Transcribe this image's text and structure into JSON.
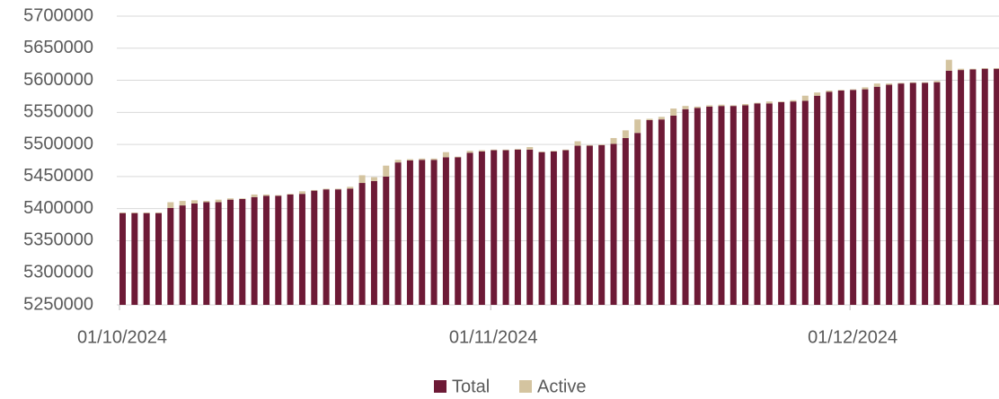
{
  "chart_data": {
    "type": "stacked-bar",
    "categories": [
      "01/10/2024",
      null,
      null,
      null,
      null,
      null,
      null,
      null,
      null,
      null,
      null,
      null,
      null,
      null,
      null,
      null,
      null,
      null,
      null,
      null,
      null,
      null,
      null,
      null,
      null,
      null,
      null,
      null,
      null,
      null,
      null,
      "01/11/2024",
      null,
      null,
      null,
      null,
      null,
      null,
      null,
      null,
      null,
      null,
      null,
      null,
      null,
      null,
      null,
      null,
      null,
      null,
      null,
      null,
      null,
      null,
      null,
      null,
      null,
      null,
      null,
      null,
      null,
      "01/12/2024",
      null,
      null,
      null,
      null,
      null,
      null,
      null,
      null,
      null,
      null,
      null,
      null
    ],
    "series": [
      {
        "name": "Total",
        "color": "#6d1a36",
        "values": [
          5393000,
          5393000,
          5393000,
          5393000,
          5401000,
          5405000,
          5408000,
          5410000,
          5410000,
          5414000,
          5415000,
          5418000,
          5420000,
          5420000,
          5422000,
          5423000,
          5428000,
          5430000,
          5430000,
          5431000,
          5440000,
          5443000,
          5450000,
          5472000,
          5475000,
          5476000,
          5476000,
          5480000,
          5480000,
          5487000,
          5489000,
          5491000,
          5491000,
          5492000,
          5492000,
          5488000,
          5489000,
          5491000,
          5498000,
          5498000,
          5499000,
          5501000,
          5510000,
          5518000,
          5538000,
          5539000,
          5545000,
          5555000,
          5557000,
          5559000,
          5560000,
          5560000,
          5561000,
          5564000,
          5564000,
          5566000,
          5567000,
          5568000,
          5576000,
          5582000,
          5584000,
          5585000,
          5586000,
          5590000,
          5593000,
          5595000,
          5596000,
          5596000,
          5597000,
          5615000,
          5616000,
          5617000,
          5618000,
          5618000
        ]
      },
      {
        "name": "Active",
        "color": "#d4c4a0",
        "values": [
          1000,
          1000,
          1000,
          1000,
          9000,
          7000,
          5000,
          2000,
          4000,
          2000,
          1000,
          4000,
          2000,
          1000,
          1000,
          4000,
          1000,
          1000,
          1000,
          3000,
          12000,
          6000,
          17000,
          4000,
          2000,
          2000,
          2000,
          8000,
          1000,
          3000,
          2000,
          1000,
          1000,
          1000,
          4000,
          1000,
          1000,
          1000,
          7000,
          1000,
          1000,
          9000,
          12000,
          21000,
          2000,
          4000,
          11000,
          5000,
          2000,
          2000,
          2000,
          1000,
          2000,
          1000,
          3000,
          1000,
          2000,
          8000,
          5000,
          2000,
          1000,
          1000,
          3000,
          5000,
          2000,
          1000,
          1000,
          1000,
          2000,
          17000,
          2000,
          1000,
          1000,
          1000
        ]
      }
    ],
    "ylim": [
      5250000,
      5700000
    ],
    "yticks": [
      5250000,
      5300000,
      5350000,
      5400000,
      5450000,
      5500000,
      5550000,
      5600000,
      5650000,
      5700000
    ],
    "grid": true,
    "legend": "bottom"
  }
}
